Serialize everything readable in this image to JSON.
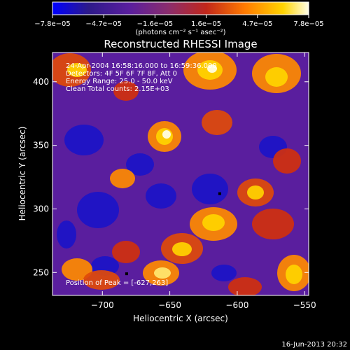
{
  "chart_data": {
    "type": "heatmap",
    "title": "Reconstructed RHESSI Image",
    "xlabel": "Heliocentric X (arcsec)",
    "ylabel": "Heliocentric Y (arcsec)",
    "xlim": [
      -737,
      -547
    ],
    "ylim": [
      232,
      423
    ],
    "xticks": [
      -700,
      -650,
      -600,
      -550
    ],
    "xtick_labels": [
      "−700",
      "−650",
      "−600",
      "−550"
    ],
    "yticks": [
      250,
      300,
      350,
      400
    ],
    "ytick_labels": [
      "250",
      "300",
      "350",
      "400"
    ],
    "colorbar": {
      "min": -7.8e-05,
      "max": 7.8e-05,
      "tick_labels": [
        "−7.8e−05",
        "−4.7e−05",
        "−1.6e−05",
        "1.6e−05",
        "4.7e−05",
        "7.8e−05"
      ],
      "unit_label": "(photons cm⁻² s⁻¹ asec⁻²)",
      "colors": [
        "#0000ff",
        "#2d1a8a",
        "#5a1e9e",
        "#8a2d6e",
        "#c1271b",
        "#ff7a00",
        "#ffd400",
        "#ffffe8"
      ]
    },
    "info_lines": [
      "24-Apr-2004 16:58:16.000 to 16:59:36.000",
      "Detectors: 4F 5F 6F 7F 8F, Att 0",
      "Energy Range: 25.0 - 50.0 keV",
      "Clean     Total counts: 2.15E+03"
    ],
    "peak_label": "Position of Peak = [-627,263]",
    "peak_position": [
      -627,
      263
    ],
    "markers": [
      [
        -682,
        249
      ],
      [
        -613,
        312
      ]
    ]
  },
  "footer": {
    "timestamp": "16-Jun-2013 20:32"
  }
}
